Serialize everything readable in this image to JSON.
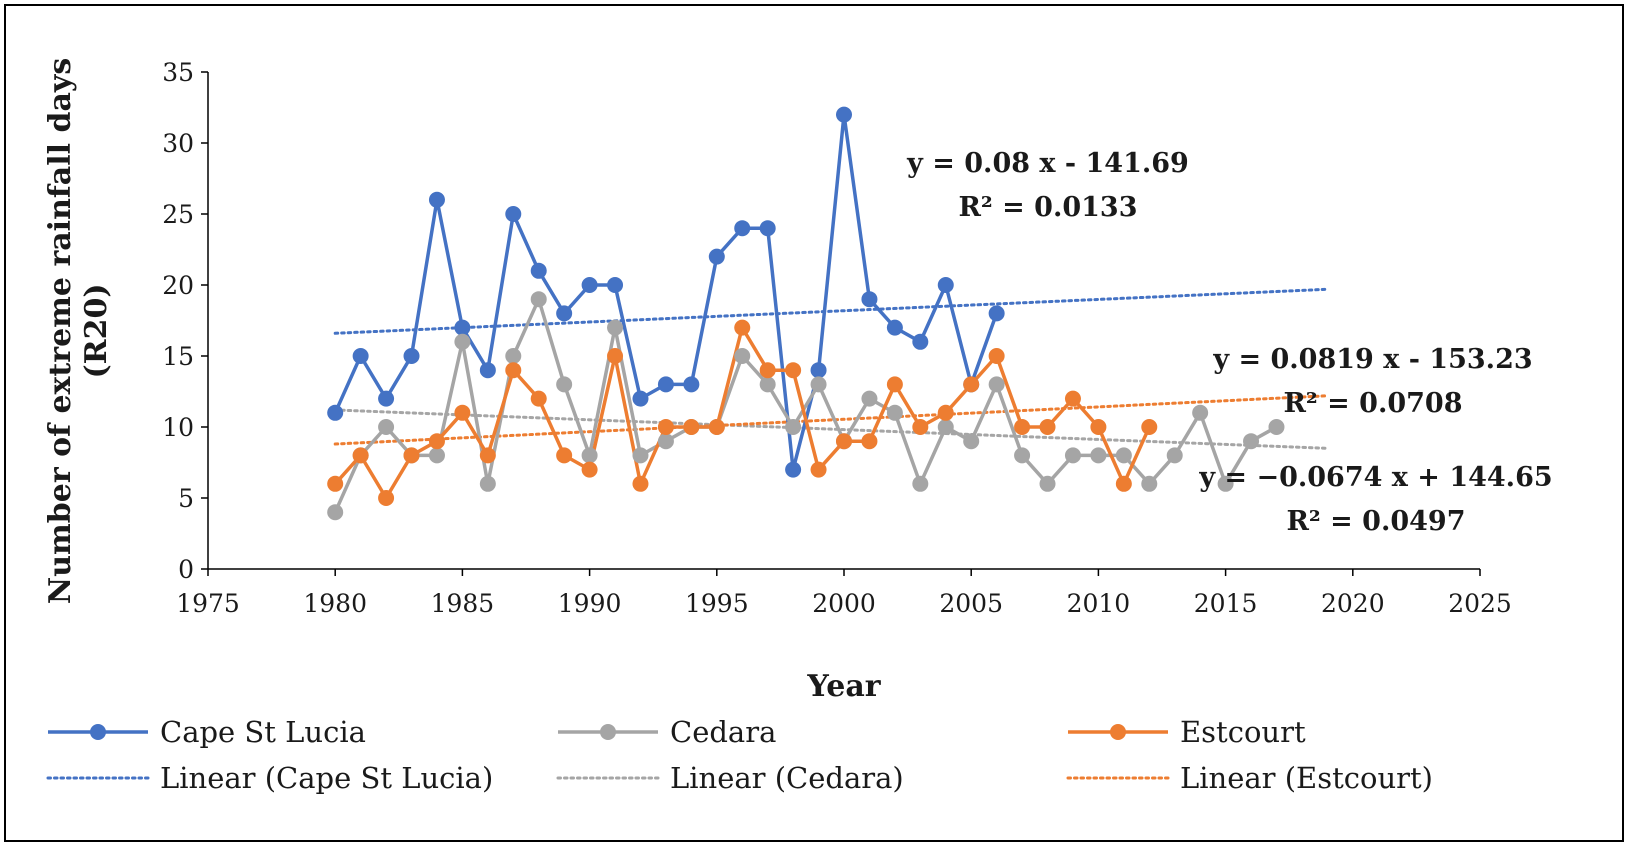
{
  "chart_data": {
    "type": "line",
    "xlabel": "Year",
    "ylabel": "Number of extreme rainfall days (R20)",
    "xlim": [
      1975,
      2025
    ],
    "ylim": [
      0,
      35
    ],
    "x_ticks": [
      1975,
      1980,
      1985,
      1990,
      1995,
      2000,
      2005,
      2010,
      2015,
      2020,
      2025
    ],
    "y_ticks": [
      0,
      5,
      10,
      15,
      20,
      25,
      30,
      35
    ],
    "grid": false,
    "legend_position": "bottom",
    "series": [
      {
        "name": "Cape St Lucia",
        "color": "#4472c4",
        "x": [
          1980,
          1981,
          1982,
          1983,
          1984,
          1985,
          1986,
          1987,
          1988,
          1989,
          1990,
          1991,
          1992,
          1993,
          1994,
          1995,
          1996,
          1997,
          1998,
          1999,
          2000,
          2001,
          2002,
          2003,
          2004,
          2005,
          2006
        ],
        "y": [
          11,
          15,
          12,
          15,
          26,
          17,
          14,
          25,
          21,
          18,
          20,
          20,
          12,
          13,
          13,
          22,
          24,
          24,
          7,
          14,
          32,
          19,
          17,
          16,
          20,
          13,
          18
        ]
      },
      {
        "name": "Cedara",
        "color": "#a5a5a5",
        "x": [
          1980,
          1981,
          1982,
          1983,
          1984,
          1985,
          1986,
          1987,
          1988,
          1989,
          1990,
          1991,
          1992,
          1993,
          1994,
          1995,
          1996,
          1997,
          1998,
          1999,
          2000,
          2001,
          2002,
          2003,
          2004,
          2005,
          2006,
          2007,
          2008,
          2009,
          2010,
          2011,
          2012,
          2013,
          2014,
          2015,
          2016,
          2017
        ],
        "y": [
          4,
          8,
          10,
          8,
          8,
          16,
          6,
          15,
          19,
          13,
          8,
          17,
          8,
          9,
          10,
          10,
          15,
          13,
          10,
          13,
          9,
          12,
          11,
          6,
          10,
          9,
          13,
          8,
          6,
          8,
          8,
          8,
          6,
          8,
          11,
          6,
          9,
          10
        ]
      },
      {
        "name": "Estcourt",
        "color": "#ed7d31",
        "x": [
          1980,
          1981,
          1982,
          1983,
          1984,
          1985,
          1986,
          1987,
          1988,
          1989,
          1990,
          1991,
          1992,
          1993,
          1994,
          1995,
          1996,
          1997,
          1998,
          1999,
          2000,
          2001,
          2002,
          2003,
          2004,
          2005,
          2006,
          2007,
          2008,
          2009,
          2010,
          2011,
          2012
        ],
        "y": [
          6,
          8,
          5,
          8,
          9,
          11,
          8,
          14,
          12,
          8,
          7,
          15,
          6,
          10,
          10,
          10,
          17,
          14,
          14,
          7,
          9,
          9,
          13,
          10,
          11,
          13,
          15,
          10,
          10,
          12,
          10,
          6,
          10
        ]
      }
    ],
    "trendlines": [
      {
        "name": "Linear (Cape St Lucia)",
        "color": "#4472c4",
        "x": [
          1980,
          2019
        ],
        "y": [
          16.6,
          19.7
        ]
      },
      {
        "name": "Linear (Cedara)",
        "color": "#a5a5a5",
        "x": [
          1980,
          2019
        ],
        "y": [
          11.2,
          8.5
        ]
      },
      {
        "name": "Linear (Estcourt)",
        "color": "#ed7d31",
        "x": [
          1980,
          2019
        ],
        "y": [
          8.8,
          12.2
        ]
      }
    ],
    "annotations": [
      {
        "line1": "y = 0.08 x - 141.69",
        "line2": "R² = 0.0133"
      },
      {
        "line1": "y = 0.0819 x - 153.23",
        "line2": "R² = 0.0708"
      },
      {
        "line1": "y = −0.0674 x + 144.65",
        "line2": "R² = 0.0497"
      }
    ],
    "legend": [
      {
        "label": "Cape St Lucia",
        "color": "#4472c4",
        "style": "line-marker"
      },
      {
        "label": "Cedara",
        "color": "#a5a5a5",
        "style": "line-marker"
      },
      {
        "label": "Estcourt",
        "color": "#ed7d31",
        "style": "line-marker"
      },
      {
        "label": "Linear (Cape St Lucia)",
        "color": "#4472c4",
        "style": "dotted"
      },
      {
        "label": "Linear (Cedara)",
        "color": "#a5a5a5",
        "style": "dotted"
      },
      {
        "label": "Linear (Estcourt)",
        "color": "#ed7d31",
        "style": "dotted"
      }
    ]
  }
}
